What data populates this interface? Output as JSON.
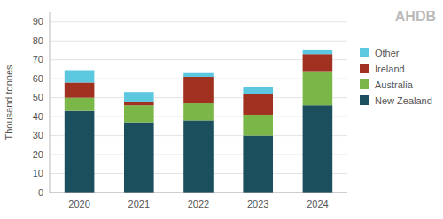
{
  "chart_data": {
    "type": "bar",
    "stacked": true,
    "categories": [
      "2020",
      "2021",
      "2022",
      "2023",
      "2024"
    ],
    "series": [
      {
        "name": "New Zealand",
        "color": "#1c4f5e",
        "values": [
          43,
          37,
          38,
          30,
          46
        ]
      },
      {
        "name": "Australia",
        "color": "#7ab648",
        "values": [
          7,
          9,
          9,
          11,
          18
        ]
      },
      {
        "name": "Ireland",
        "color": "#a03020",
        "values": [
          8,
          2,
          14,
          11,
          9
        ]
      },
      {
        "name": "Other",
        "color": "#5bc8e0",
        "values": [
          6.5,
          5,
          2,
          3.5,
          2
        ]
      }
    ],
    "ylabel": "Thousand tonnes",
    "ylim": [
      0,
      95
    ],
    "yticks": [
      0,
      10,
      20,
      30,
      40,
      50,
      60,
      70,
      80,
      90
    ],
    "grid": true,
    "legend": "upper right",
    "annotations": [
      "AHDB"
    ]
  }
}
